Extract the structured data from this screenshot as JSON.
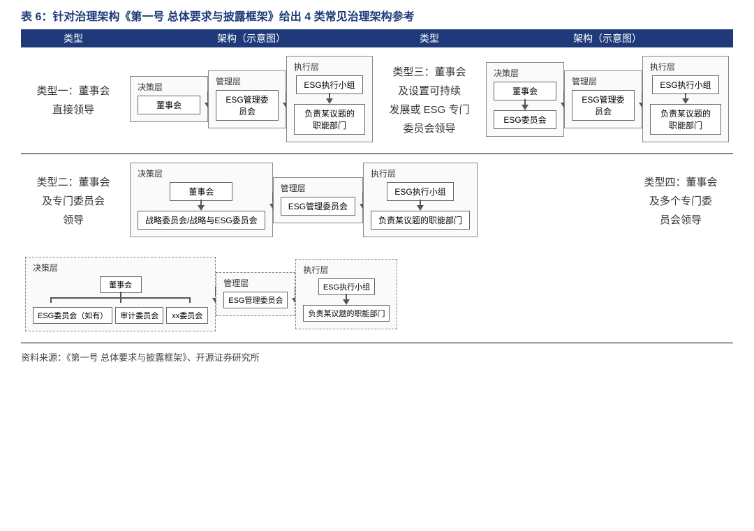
{
  "title": "表 6：针对治理架构《第一号 总体要求与披露框架》给出 4 类常见治理架构参考",
  "header": {
    "type": "类型",
    "diagram": "架构（示意图）"
  },
  "colors": {
    "header_bg": "#1f3a7a",
    "header_fg": "#ffffff",
    "title_fg": "#1f3a7a",
    "node_border": "#666666",
    "layer_border": "#888888",
    "arrow": "#555555"
  },
  "types": {
    "t1": {
      "label_lines": [
        "类型一：董事会",
        "直接领导"
      ],
      "layers": [
        {
          "name": "决策层",
          "dashed": false,
          "nodes": [
            "董事会"
          ]
        },
        {
          "name": "管理层",
          "dashed": false,
          "nodes": [
            "ESG管理委员会"
          ]
        },
        {
          "name": "执行层",
          "dashed": false,
          "nodes": [
            "ESG执行小组",
            "负责某议题的职能部门"
          ]
        }
      ]
    },
    "t2": {
      "label_lines": [
        "类型二：董事会",
        "及专门委员会",
        "领导"
      ],
      "layers": [
        {
          "name": "决策层",
          "dashed": false,
          "nodes": [
            "董事会",
            "战略委员会/战略与ESG委员会"
          ]
        },
        {
          "name": "管理层",
          "dashed": false,
          "nodes": [
            "ESG管理委员会"
          ]
        },
        {
          "name": "执行层",
          "dashed": false,
          "nodes": [
            "ESG执行小组",
            "负责某议题的职能部门"
          ]
        }
      ]
    },
    "t3": {
      "label_lines": [
        "类型三：董事会",
        "及设置可持续",
        "发展或 ESG 专门",
        "委员会领导"
      ],
      "layers": [
        {
          "name": "决策层",
          "dashed": false,
          "nodes": [
            "董事会",
            "ESG委员会"
          ]
        },
        {
          "name": "管理层",
          "dashed": false,
          "nodes": [
            "ESG管理委员会"
          ]
        },
        {
          "name": "执行层",
          "dashed": false,
          "nodes": [
            "ESG执行小组",
            "负责某议题的职能部门"
          ]
        }
      ]
    },
    "t4": {
      "label_lines": [
        "类型四：董事会",
        "及多个专门委",
        "员会领导"
      ],
      "layers": [
        {
          "name": "决策层",
          "dashed": true,
          "root": "董事会",
          "branches": [
            "ESG委员会（如有）",
            "审计委员会",
            "xx委员会"
          ]
        },
        {
          "name": "管理层",
          "dashed": true,
          "nodes": [
            "ESG管理委员会"
          ]
        },
        {
          "name": "执行层",
          "dashed": true,
          "nodes": [
            "ESG执行小组",
            "负责某议题的职能部门"
          ]
        }
      ]
    }
  },
  "source": "资料来源：《第一号 总体要求与披露框架》、开源证券研究所"
}
